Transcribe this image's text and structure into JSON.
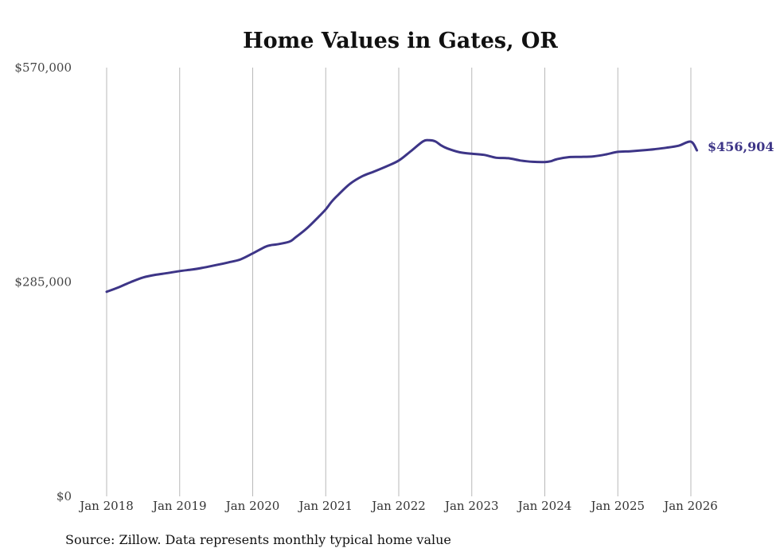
{
  "chart_data": {
    "type": "line",
    "title": "Home Values in Gates, OR",
    "xlabel": "",
    "ylabel": "",
    "ylim": [
      0,
      570000
    ],
    "y_ticks": [
      {
        "value": 0,
        "label": "$0"
      },
      {
        "value": 285000,
        "label": "$285,000"
      },
      {
        "value": 570000,
        "label": "$570,000"
      }
    ],
    "x_range": [
      2018,
      2026.083
    ],
    "x_ticks": [
      {
        "value": 2018,
        "label": "Jan 2018"
      },
      {
        "value": 2019,
        "label": "Jan 2019"
      },
      {
        "value": 2020,
        "label": "Jan 2020"
      },
      {
        "value": 2021,
        "label": "Jan 2021"
      },
      {
        "value": 2022,
        "label": "Jan 2022"
      },
      {
        "value": 2023,
        "label": "Jan 2023"
      },
      {
        "value": 2024,
        "label": "Jan 2024"
      },
      {
        "value": 2025,
        "label": "Jan 2025"
      },
      {
        "value": 2026,
        "label": "Jan 2026"
      }
    ],
    "grid": "vertical",
    "series": [
      {
        "name": "Typical home value",
        "color": "#3d3587",
        "x": [
          2018.0,
          2018.167,
          2018.333,
          2018.5,
          2018.667,
          2018.833,
          2019.0,
          2019.167,
          2019.333,
          2019.5,
          2019.667,
          2019.833,
          2020.0,
          2020.167,
          2020.25,
          2020.333,
          2020.5,
          2020.583,
          2020.75,
          2020.917,
          2021.0,
          2021.083,
          2021.167,
          2021.333,
          2021.5,
          2021.667,
          2021.833,
          2022.0,
          2022.167,
          2022.333,
          2022.417,
          2022.5,
          2022.583,
          2022.667,
          2022.833,
          2023.0,
          2023.167,
          2023.333,
          2023.5,
          2023.667,
          2023.833,
          2024.0,
          2024.083,
          2024.167,
          2024.333,
          2024.5,
          2024.667,
          2024.833,
          2025.0,
          2025.167,
          2025.333,
          2025.5,
          2025.667,
          2025.833,
          2026.0,
          2026.083
        ],
        "values": [
          272000,
          278000,
          285000,
          291000,
          294500,
          296800,
          299500,
          301500,
          304200,
          307500,
          311000,
          315000,
          323000,
          331500,
          334000,
          335000,
          338500,
          344000,
          357000,
          373000,
          381500,
          392000,
          400500,
          415500,
          425500,
          432000,
          438800,
          446500,
          459000,
          472000,
          473500,
          472000,
          466500,
          462500,
          457500,
          455500,
          454000,
          450200,
          449500,
          446500,
          444800,
          444500,
          445500,
          448300,
          451000,
          451300,
          452000,
          454500,
          458000,
          458800,
          460000,
          461500,
          463500,
          466200,
          471500,
          456904
        ],
        "end_label": "$456,904"
      }
    ]
  },
  "source_note": "Source: Zillow. Data represents monthly typical home value"
}
